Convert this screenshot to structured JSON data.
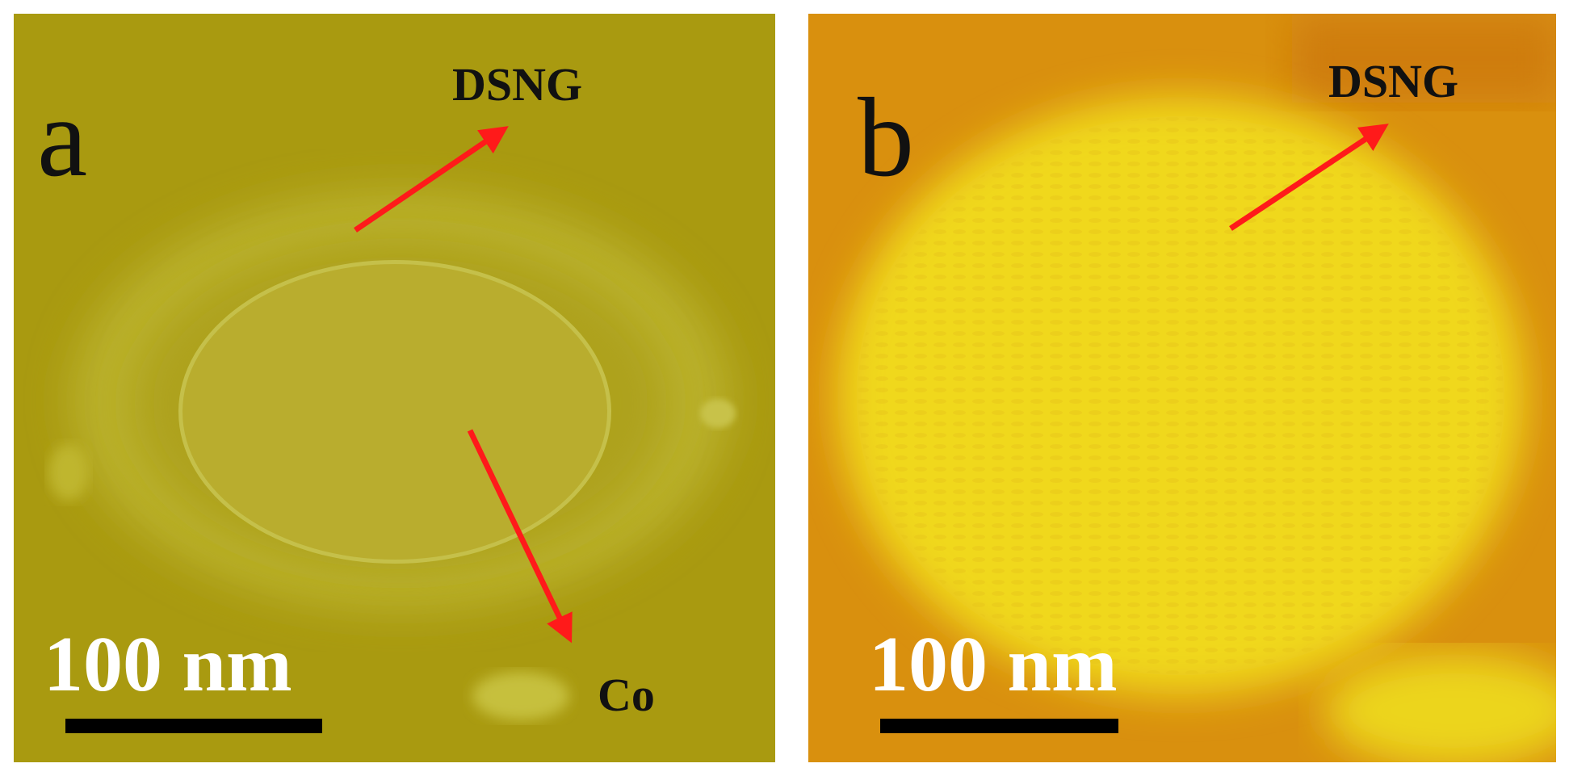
{
  "panels": [
    {
      "label": "a",
      "annotations": [
        "DSNG",
        "Co"
      ],
      "scale_bar": "100 nm"
    },
    {
      "label": "b",
      "annotations": [
        "DSNG"
      ],
      "scale_bar": "100 nm"
    }
  ]
}
